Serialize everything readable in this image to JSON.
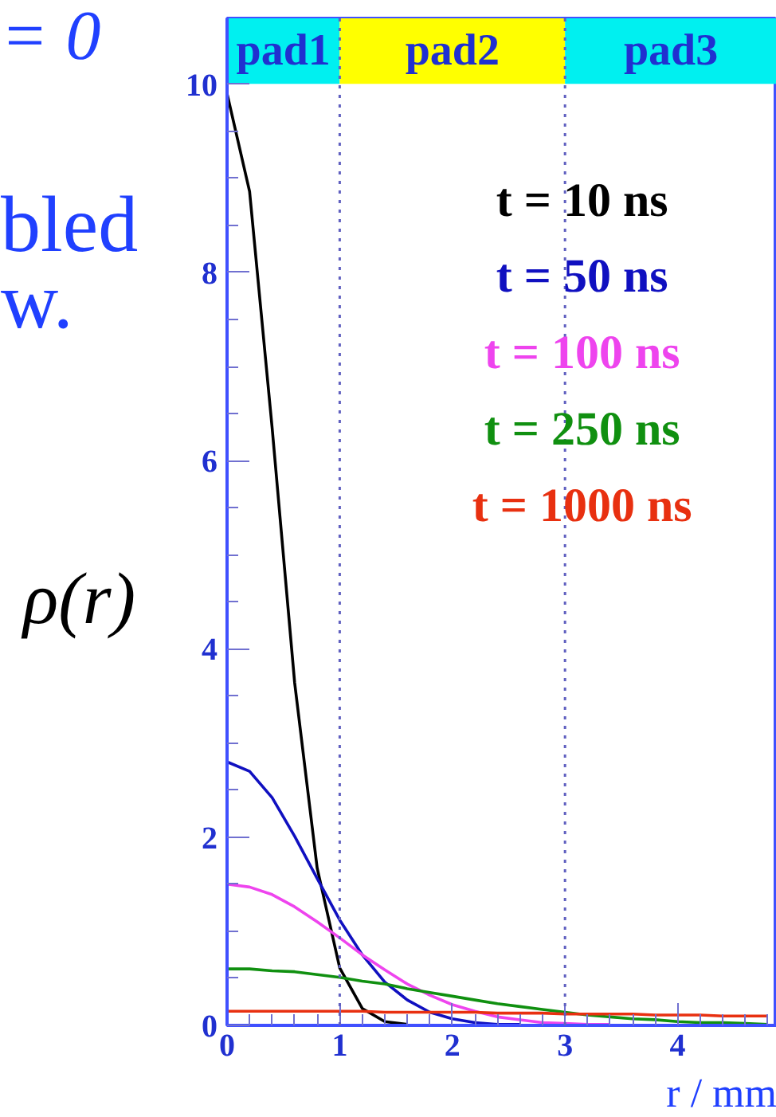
{
  "chart_data": {
    "type": "line",
    "x": [
      0,
      0.2,
      0.4,
      0.6,
      0.8,
      1.0,
      1.2,
      1.4,
      1.6,
      1.8,
      2.0,
      2.2,
      2.4,
      2.6,
      2.8,
      3.0,
      3.2,
      3.4,
      3.6,
      3.8,
      4.0,
      4.2,
      4.4,
      4.6,
      4.8
    ],
    "series": [
      {
        "name": "t = 10 ns",
        "color": "#000000",
        "x": [
          0,
          0.2,
          0.4,
          0.6,
          0.8,
          1.0,
          1.2,
          1.4,
          1.6
        ],
        "values": [
          9.9,
          8.86,
          6.35,
          3.64,
          1.67,
          0.61,
          0.18,
          0.04,
          0.01
        ]
      },
      {
        "name": "t = 50 ns",
        "color": "#1010c0",
        "x": [
          0,
          0.2,
          0.4,
          0.6,
          0.8,
          1.0,
          1.2,
          1.4,
          1.6,
          1.8,
          2.0,
          2.2,
          2.4,
          2.6
        ],
        "values": [
          2.8,
          2.7,
          2.42,
          2.01,
          1.56,
          1.12,
          0.75,
          0.46,
          0.27,
          0.14,
          0.07,
          0.03,
          0.01,
          0.01
        ]
      },
      {
        "name": "t = 100 ns",
        "color": "#ee44ee",
        "x": [
          0,
          0.2,
          0.4,
          0.6,
          0.8,
          1.0,
          1.2,
          1.4,
          1.6,
          1.8,
          2.0,
          2.2,
          2.4,
          2.6,
          2.8,
          3.0,
          3.2,
          3.4
        ],
        "values": [
          1.5,
          1.47,
          1.39,
          1.26,
          1.1,
          0.93,
          0.75,
          0.59,
          0.44,
          0.32,
          0.22,
          0.15,
          0.09,
          0.06,
          0.03,
          0.02,
          0.01,
          0.01
        ]
      },
      {
        "name": "t = 250 ns",
        "color": "#109010",
        "values": [
          0.6,
          0.6,
          0.58,
          0.57,
          0.54,
          0.51,
          0.47,
          0.44,
          0.39,
          0.35,
          0.31,
          0.27,
          0.23,
          0.2,
          0.17,
          0.14,
          0.11,
          0.09,
          0.07,
          0.06,
          0.04,
          0.03,
          0.03,
          0.02,
          0.01
        ]
      },
      {
        "name": "t = 1000 ns",
        "color": "#e83010",
        "values": [
          0.15,
          0.15,
          0.15,
          0.15,
          0.15,
          0.15,
          0.15,
          0.14,
          0.14,
          0.14,
          0.14,
          0.14,
          0.13,
          0.13,
          0.13,
          0.12,
          0.12,
          0.12,
          0.12,
          0.11,
          0.11,
          0.11,
          0.1,
          0.1,
          0.1
        ]
      }
    ],
    "xlim": [
      0,
      4.88
    ],
    "ylim": [
      0,
      10.7
    ],
    "xticks": [
      0,
      1,
      2,
      3,
      4
    ],
    "yticks": [
      0,
      2,
      4,
      6,
      8,
      10
    ],
    "xlabel": "r / mm",
    "ylabel": "ρ(r)",
    "bands": [
      {
        "axis": "x",
        "from": 0,
        "to": 1,
        "label": "pad1",
        "color": "#00f0f0"
      },
      {
        "axis": "x",
        "from": 1,
        "to": 3,
        "label": "pad2",
        "color": "#ffff00"
      },
      {
        "axis": "x",
        "from": 3,
        "to": 4.88,
        "label": "pad3",
        "color": "#00f0f0"
      }
    ],
    "ref_lines": [
      {
        "axis": "x",
        "value": 1,
        "color": "#6060c0",
        "line_style": "dotted"
      },
      {
        "axis": "x",
        "value": 3,
        "color": "#6060c0",
        "line_style": "dotted"
      }
    ],
    "annotations": [
      "= 0",
      "bled",
      "w."
    ],
    "legend": "right",
    "grid": false,
    "marker": "none",
    "line_style": "solid"
  }
}
